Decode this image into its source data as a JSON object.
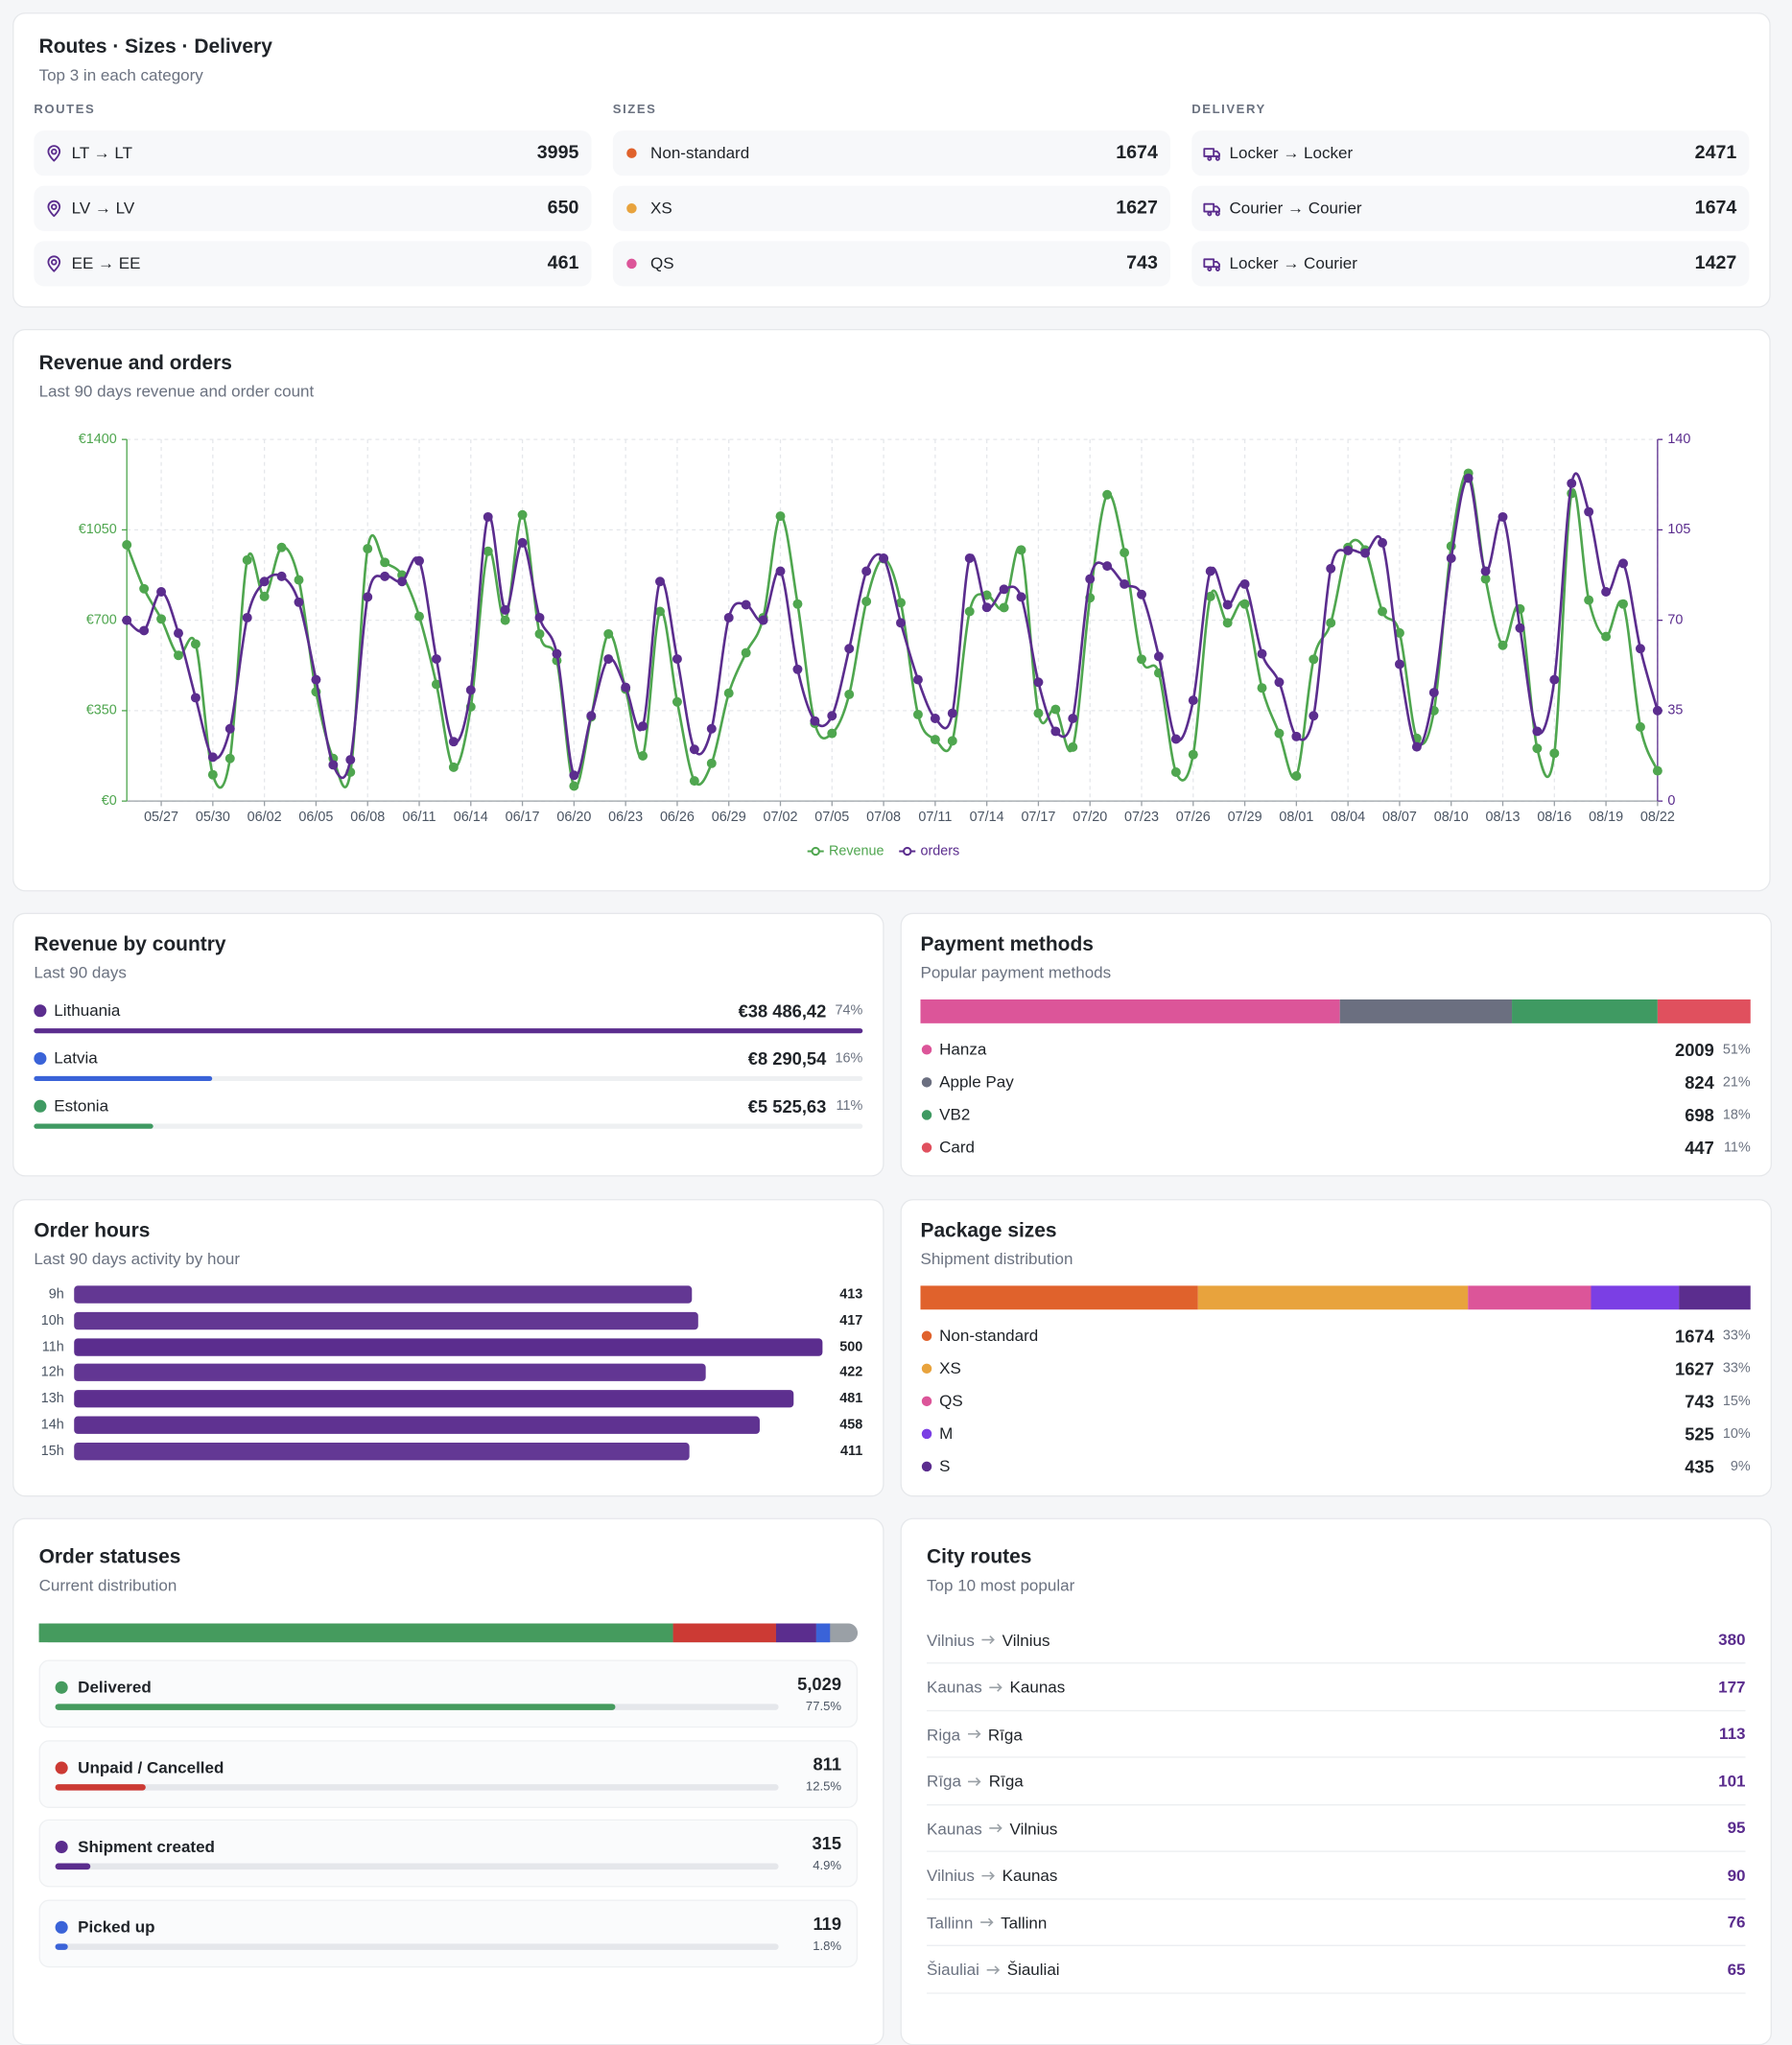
{
  "routes_overview": {
    "title": "Routes · Sizes · Delivery",
    "subtitle": "Top 3 in each category",
    "columns": [
      {
        "heading": "ROUTES",
        "items": [
          {
            "label": "LT → LT",
            "value": 3995
          },
          {
            "label": "LV → LV",
            "value": 650
          },
          {
            "label": "EE → EE",
            "value": 461
          }
        ]
      },
      {
        "heading": "SIZES",
        "items": [
          {
            "label": "Non-standard",
            "value": 1674,
            "color": "#e0622c"
          },
          {
            "label": "XS",
            "value": 1627,
            "color": "#e8a33d"
          },
          {
            "label": "QS",
            "value": 743,
            "color": "#dc5599"
          }
        ]
      },
      {
        "heading": "DELIVERY",
        "items": [
          {
            "label": "Locker → Locker",
            "value": 2471
          },
          {
            "label": "Courier → Courier",
            "value": 1674
          },
          {
            "label": "Locker → Courier",
            "value": 1427
          }
        ]
      }
    ]
  },
  "chart_data": {
    "type": "line",
    "title": "Revenue and orders",
    "subtitle": "Last 90 days revenue and order count",
    "categories": [
      null,
      null,
      "05/27",
      null,
      null,
      "05/30",
      null,
      null,
      "06/02",
      null,
      null,
      "06/05",
      null,
      null,
      "06/08",
      null,
      null,
      "06/11",
      null,
      null,
      "06/14",
      null,
      null,
      "06/17",
      null,
      null,
      "06/20",
      null,
      null,
      "06/23",
      null,
      null,
      "06/26",
      null,
      null,
      "06/29",
      null,
      null,
      "07/02",
      null,
      null,
      "07/05",
      null,
      null,
      "07/08",
      null,
      null,
      "07/11",
      null,
      null,
      "07/14",
      null,
      null,
      "07/17",
      null,
      null,
      "07/20",
      null,
      null,
      "07/23",
      null,
      null,
      "07/26",
      null,
      null,
      "07/29",
      null,
      null,
      "08/01",
      null,
      null,
      "08/04",
      null,
      null,
      "08/07",
      null,
      null,
      "08/10",
      null,
      null,
      "08/13",
      null,
      null,
      "08/16",
      null,
      null,
      "08/19",
      null,
      null,
      "08/22"
    ],
    "series": [
      {
        "name": "Revenue",
        "color": "#4fa64f",
        "values": [
          992,
          822,
          705,
          564,
          608,
          102,
          165,
          933,
          792,
          982,
          856,
          423,
          165,
          112,
          977,
          924,
          875,
          715,
          452,
          131,
          365,
          967,
          700,
          1108,
          647,
          544,
          58,
          326,
          647,
          433,
          175,
          734,
          384,
          78,
          146,
          418,
          574,
          710,
          1103,
          763,
          301,
          262,
          413,
          773,
          938,
          768,
          335,
          238,
          233,
          734,
          797,
          749,
          972,
          340,
          355,
          209,
          787,
          1186,
          962,
          549,
          496,
          112,
          180,
          792,
          690,
          763,
          438,
          262,
          97,
          549,
          690,
          982,
          972,
          734,
          651,
          243,
          350,
          987,
          1269,
          860,
          603,
          744,
          204,
          185,
          1191,
          778,
          637,
          763,
          287,
          117
        ]
      },
      {
        "name": "orders",
        "color": "#5b2d8e",
        "axis": "y2",
        "values": [
          70,
          66,
          81,
          65,
          40,
          17,
          28,
          71,
          85,
          87,
          77,
          47,
          14,
          16,
          79,
          87,
          85,
          93,
          55,
          23,
          43,
          110,
          74,
          100,
          71,
          57,
          10,
          33,
          55,
          44,
          29,
          85,
          55,
          20,
          28,
          71,
          76,
          70,
          89,
          51,
          31,
          33,
          59,
          89,
          94,
          69,
          47,
          32,
          34,
          94,
          75,
          82,
          79,
          46,
          27,
          32,
          86,
          91,
          84,
          80,
          56,
          24,
          39,
          89,
          76,
          84,
          57,
          46,
          25,
          33,
          90,
          97,
          96,
          100,
          53,
          21,
          42,
          94,
          125,
          89,
          110,
          67,
          27,
          47,
          123,
          112,
          81,
          92,
          59,
          35
        ]
      }
    ],
    "ylim": [
      0,
      1400
    ],
    "yticks": [
      {
        "value": 0,
        "label": "€0"
      },
      {
        "value": 350,
        "label": "€350"
      },
      {
        "value": 700,
        "label": "€700"
      },
      {
        "value": 1050,
        "label": "€1050"
      },
      {
        "value": 1400,
        "label": "€1400"
      }
    ],
    "y2lim": [
      0,
      140
    ],
    "y2ticks": [
      0,
      35,
      70,
      105,
      140
    ],
    "grid": true,
    "legend": "bottom"
  },
  "revenue_by_country": {
    "title": "Revenue by country",
    "subtitle": "Last 90 days",
    "items": [
      {
        "name": "Lithuania",
        "amount": 38486.42,
        "amount_label": "€38 486,42",
        "share": 74,
        "share_label": "74%",
        "color": "#5b2d8e"
      },
      {
        "name": "Latvia",
        "amount": 8290.54,
        "amount_label": "€8 290,54",
        "share": 16,
        "share_label": "16%",
        "color": "#3a63d8"
      },
      {
        "name": "Estonia",
        "amount": 5525.63,
        "amount_label": "€5 525,63",
        "share": 11,
        "share_label": "11%",
        "color": "#3f9a62"
      }
    ]
  },
  "payment_methods": {
    "title": "Payment methods",
    "subtitle": "Popular payment methods",
    "items": [
      {
        "name": "Hanza",
        "value": 2009,
        "share": 51,
        "share_label": "51%",
        "color": "#dc5599"
      },
      {
        "name": "Apple Pay",
        "value": 824,
        "share": 21,
        "share_label": "21%",
        "color": "#6b6f80"
      },
      {
        "name": "VB2",
        "value": 698,
        "share": 18,
        "share_label": "18%",
        "color": "#3f9a62"
      },
      {
        "name": "Card",
        "value": 447,
        "share": 11,
        "share_label": "11%",
        "color": "#e0505e"
      }
    ]
  },
  "order_hours": {
    "title": "Order hours",
    "subtitle": "Last 90 days activity by hour",
    "color": "#5b2d8e",
    "items": [
      {
        "label": "9h",
        "value": 413
      },
      {
        "label": "10h",
        "value": 417
      },
      {
        "label": "11h",
        "value": 500
      },
      {
        "label": "12h",
        "value": 422
      },
      {
        "label": "13h",
        "value": 481
      },
      {
        "label": "14h",
        "value": 458
      },
      {
        "label": "15h",
        "value": 411
      }
    ]
  },
  "package_sizes": {
    "title": "Package sizes",
    "subtitle": "Shipment distribution",
    "items": [
      {
        "name": "Non-standard",
        "value": 1674,
        "share": 33,
        "share_label": "33%",
        "color": "#e0622c"
      },
      {
        "name": "XS",
        "value": 1627,
        "share": 33,
        "share_label": "33%",
        "color": "#e8a33d"
      },
      {
        "name": "QS",
        "value": 743,
        "share": 15,
        "share_label": "15%",
        "color": "#dc5599"
      },
      {
        "name": "M",
        "value": 525,
        "share": 10,
        "share_label": "10%",
        "color": "#7b3fe4"
      },
      {
        "name": "S",
        "value": 435,
        "share": 9,
        "share_label": "9%",
        "color": "#5b2d8e"
      }
    ]
  },
  "order_statuses": {
    "title": "Order statuses",
    "subtitle": "Current distribution",
    "items": [
      {
        "name": "Delivered",
        "value": 5029,
        "value_label": "5,029",
        "share": 77.5,
        "share_label": "77.5%",
        "color": "#459b5e"
      },
      {
        "name": "Unpaid / Cancelled",
        "value": 811,
        "value_label": "811",
        "share": 12.5,
        "share_label": "12.5%",
        "color": "#cc3a34"
      },
      {
        "name": "Shipment created",
        "value": 315,
        "value_label": "315",
        "share": 4.9,
        "share_label": "4.9%",
        "color": "#5b2d8e"
      },
      {
        "name": "Picked up",
        "value": 119,
        "value_label": "119",
        "share": 1.8,
        "share_label": "1.8%",
        "color": "#3a63d8"
      }
    ]
  },
  "city_routes": {
    "title": "City routes",
    "subtitle": "Top 10 most popular",
    "items": [
      {
        "from": "Vilnius",
        "to": "Vilnius",
        "value": 380
      },
      {
        "from": "Kaunas",
        "to": "Kaunas",
        "value": 177
      },
      {
        "from": "Riga",
        "to": "Rīga",
        "value": 113
      },
      {
        "from": "Rīga",
        "to": "Rīga",
        "value": 101
      },
      {
        "from": "Kaunas",
        "to": "Vilnius",
        "value": 95
      },
      {
        "from": "Vilnius",
        "to": "Kaunas",
        "value": 90
      },
      {
        "from": "Tallinn",
        "to": "Tallinn",
        "value": 76
      },
      {
        "from": "Šiauliai",
        "to": "Šiauliai",
        "value": 65
      }
    ]
  }
}
